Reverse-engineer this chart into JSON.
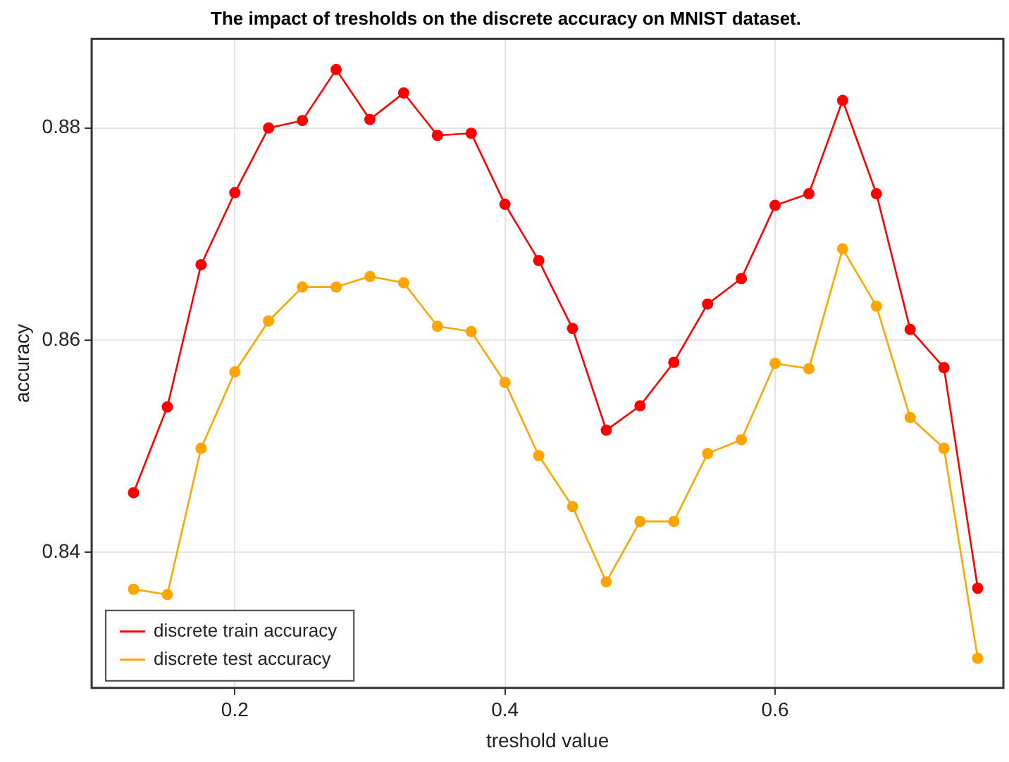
{
  "chart_data": {
    "type": "line",
    "title": "The impact of tresholds on the discrete accuracy on MNIST dataset.",
    "xlabel": "treshold value",
    "ylabel": "accuracy",
    "x": [
      0.125,
      0.15,
      0.175,
      0.2,
      0.225,
      0.25,
      0.275,
      0.3,
      0.325,
      0.35,
      0.375,
      0.4,
      0.425,
      0.45,
      0.475,
      0.5,
      0.525,
      0.55,
      0.575,
      0.6,
      0.625,
      0.65,
      0.675,
      0.7,
      0.725,
      0.75
    ],
    "series": [
      {
        "name": "discrete train accuracy",
        "color": "#ff0000",
        "values": [
          0.8456,
          0.8537,
          0.8671,
          0.8739,
          0.88,
          0.8807,
          0.8855,
          0.8808,
          0.8833,
          0.8793,
          0.8795,
          0.8728,
          0.8675,
          0.8611,
          0.8515,
          0.8538,
          0.8579,
          0.8634,
          0.8658,
          0.8727,
          0.8738,
          0.8826,
          0.8738,
          0.861,
          0.8574,
          0.8366
        ]
      },
      {
        "name": "discrete test accuracy",
        "color": "#ffa500",
        "values": [
          0.8365,
          0.836,
          0.8498,
          0.857,
          0.8618,
          0.865,
          0.865,
          0.866,
          0.8654,
          0.8613,
          0.8608,
          0.856,
          0.8491,
          0.8443,
          0.8372,
          0.8429,
          0.8429,
          0.8493,
          0.8506,
          0.8578,
          0.8573,
          0.8686,
          0.8632,
          0.8527,
          0.8498,
          0.83
        ]
      }
    ],
    "xlim": [
      0.094,
      0.769
    ],
    "ylim": [
      0.8272,
      0.8884
    ],
    "xticks": [
      0.2,
      0.4,
      0.6
    ],
    "yticks": [
      0.84,
      0.86,
      0.88
    ],
    "grid": true,
    "legend": "bottom left",
    "marker": "circle",
    "line_style": "solid"
  }
}
